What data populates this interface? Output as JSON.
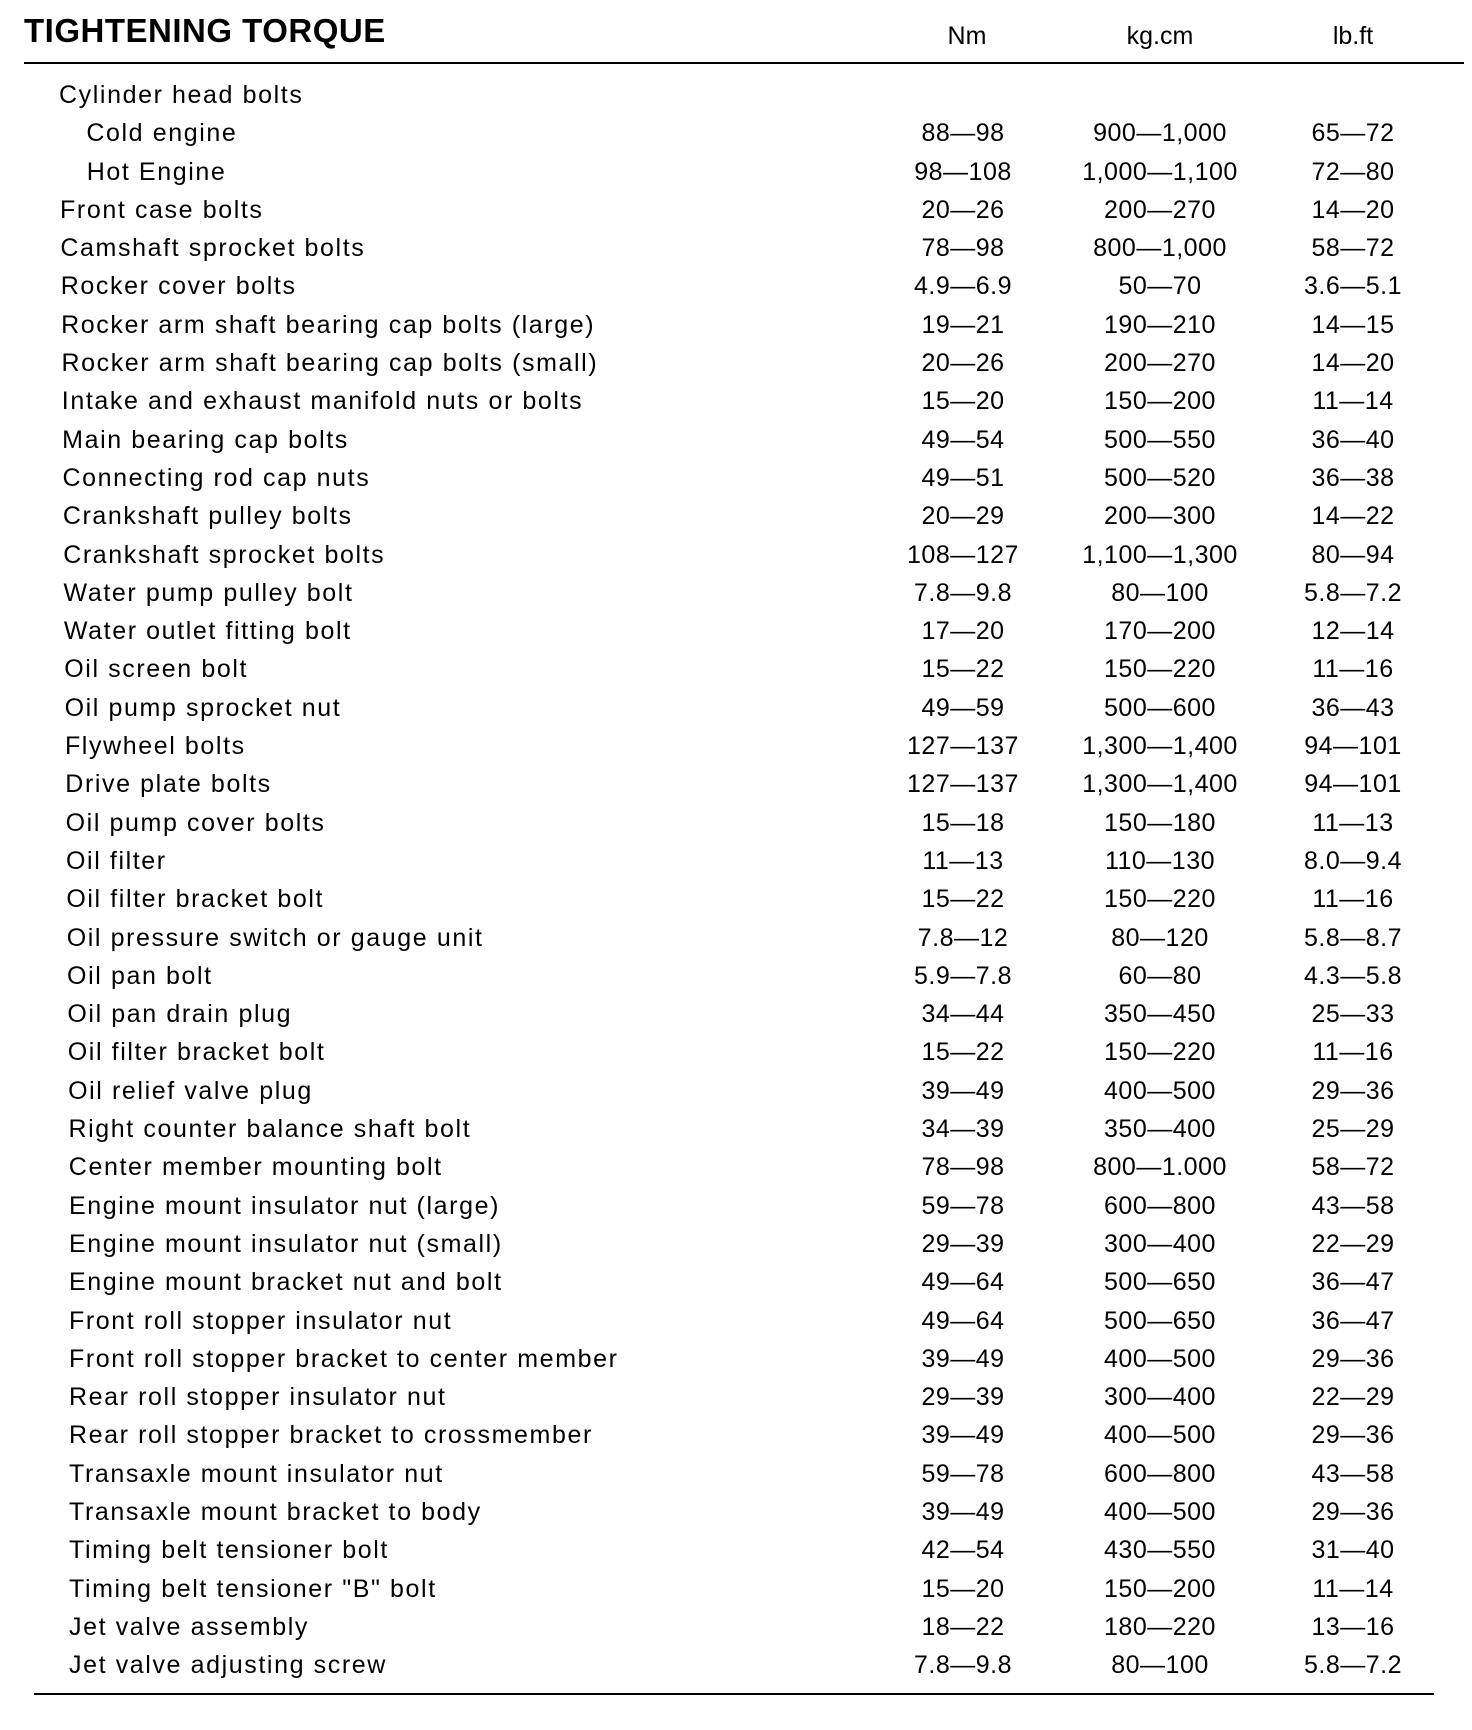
{
  "title": "TIGHTENING TORQUE",
  "columns": {
    "nm": "Nm",
    "kg": "kg.cm",
    "lb": "lb.ft"
  },
  "rows": [
    {
      "label": "Cylinder head bolts",
      "nm": "",
      "kg": "",
      "lb": ""
    },
    {
      "label": "Cold engine",
      "nm": "88—98",
      "kg": "900—1,000",
      "lb": "65—72",
      "sub": true
    },
    {
      "label": "Hot Engine",
      "nm": "98—108",
      "kg": "1,000—1,100",
      "lb": "72—80",
      "sub": true
    },
    {
      "label": "Front case bolts",
      "nm": "20—26",
      "kg": "200—270",
      "lb": "14—20"
    },
    {
      "label": "Camshaft sprocket bolts",
      "nm": "78—98",
      "kg": "800—1,000",
      "lb": "58—72"
    },
    {
      "label": "Rocker cover bolts",
      "nm": "4.9—6.9",
      "kg": "50—70",
      "lb": "3.6—5.1"
    },
    {
      "label": "Rocker arm shaft bearing cap bolts (large)",
      "nm": "19—21",
      "kg": "190—210",
      "lb": "14—15"
    },
    {
      "label": "Rocker arm shaft bearing cap bolts (small)",
      "nm": "20—26",
      "kg": "200—270",
      "lb": "14—20"
    },
    {
      "label": "Intake and exhaust manifold nuts or bolts",
      "nm": "15—20",
      "kg": "150—200",
      "lb": "11—14"
    },
    {
      "label": "Main bearing cap bolts",
      "nm": "49—54",
      "kg": "500—550",
      "lb": "36—40"
    },
    {
      "label": "Connecting rod cap nuts",
      "nm": "49—51",
      "kg": "500—520",
      "lb": "36—38"
    },
    {
      "label": "Crankshaft pulley bolts",
      "nm": "20—29",
      "kg": "200—300",
      "lb": "14—22"
    },
    {
      "label": "Crankshaft sprocket bolts",
      "nm": "108—127",
      "kg": "1,100—1,300",
      "lb": "80—94"
    },
    {
      "label": "Water pump pulley bolt",
      "nm": "7.8—9.8",
      "kg": "80—100",
      "lb": "5.8—7.2"
    },
    {
      "label": "Water outlet fitting bolt",
      "nm": "17—20",
      "kg": "170—200",
      "lb": "12—14"
    },
    {
      "label": "Oil screen bolt",
      "nm": "15—22",
      "kg": "150—220",
      "lb": "11—16"
    },
    {
      "label": "Oil pump sprocket nut",
      "nm": "49—59",
      "kg": "500—600",
      "lb": "36—43"
    },
    {
      "label": "Flywheel bolts",
      "nm": "127—137",
      "kg": "1,300—1,400",
      "lb": "94—101"
    },
    {
      "label": "Drive plate bolts",
      "nm": "127—137",
      "kg": "1,300—1,400",
      "lb": "94—101"
    },
    {
      "label": "Oil pump cover bolts",
      "nm": "15—18",
      "kg": "150—180",
      "lb": "11—13"
    },
    {
      "label": "Oil filter",
      "nm": "11—13",
      "kg": "110—130",
      "lb": "8.0—9.4"
    },
    {
      "label": "Oil filter bracket bolt",
      "nm": "15—22",
      "kg": "150—220",
      "lb": "11—16"
    },
    {
      "label": "Oil pressure switch or gauge unit",
      "nm": "7.8—12",
      "kg": "80—120",
      "lb": "5.8—8.7"
    },
    {
      "label": "Oil pan bolt",
      "nm": "5.9—7.8",
      "kg": "60—80",
      "lb": "4.3—5.8"
    },
    {
      "label": "Oil pan drain plug",
      "nm": "34—44",
      "kg": "350—450",
      "lb": "25—33"
    },
    {
      "label": "Oil filter bracket bolt",
      "nm": "15—22",
      "kg": "150—220",
      "lb": "11—16"
    },
    {
      "label": "Oil relief valve plug",
      "nm": "39—49",
      "kg": "400—500",
      "lb": "29—36"
    },
    {
      "label": "Right counter balance shaft bolt",
      "nm": "34—39",
      "kg": "350—400",
      "lb": "25—29"
    },
    {
      "label": "Center member mounting bolt",
      "nm": "78—98",
      "kg": "800—1.000",
      "lb": "58—72"
    },
    {
      "label": "Engine mount insulator nut (large)",
      "nm": "59—78",
      "kg": "600—800",
      "lb": "43—58"
    },
    {
      "label": "Engine mount insulator nut (small)",
      "nm": "29—39",
      "kg": "300—400",
      "lb": "22—29"
    },
    {
      "label": "Engine mount bracket nut and bolt",
      "nm": "49—64",
      "kg": "500—650",
      "lb": "36—47"
    },
    {
      "label": "Front roll stopper insulator nut",
      "nm": "49—64",
      "kg": "500—650",
      "lb": "36—47"
    },
    {
      "label": "Front roll stopper bracket to center member",
      "nm": "39—49",
      "kg": "400—500",
      "lb": "29—36"
    },
    {
      "label": "Rear roll stopper insulator nut",
      "nm": "29—39",
      "kg": "300—400",
      "lb": "22—29"
    },
    {
      "label": "Rear roll stopper bracket to crossmember",
      "nm": "39—49",
      "kg": "400—500",
      "lb": "29—36"
    },
    {
      "label": "Transaxle mount insulator nut",
      "nm": "59—78",
      "kg": "600—800",
      "lb": "43—58"
    },
    {
      "label": "Transaxle mount bracket to body",
      "nm": "39—49",
      "kg": "400—500",
      "lb": "29—36"
    },
    {
      "label": "Timing belt tensioner bolt",
      "nm": "42—54",
      "kg": "430—550",
      "lb": "31—40"
    },
    {
      "label": "Timing belt tensioner \"B\" bolt",
      "nm": "15—20",
      "kg": "150—200",
      "lb": "11—14"
    },
    {
      "label": "Jet valve assembly",
      "nm": "18—22",
      "kg": "180—220",
      "lb": "13—16"
    },
    {
      "label": "Jet valve adjusting screw",
      "nm": "7.8—9.8",
      "kg": "80—100",
      "lb": "5.8—7.2"
    }
  ]
}
